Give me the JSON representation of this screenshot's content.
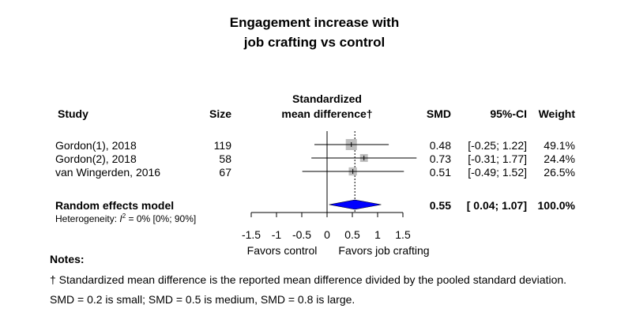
{
  "chart_data": {
    "type": "forest",
    "title_lines": [
      "Engagement increase with",
      "job crafting vs control"
    ],
    "headers": {
      "study": "Study",
      "size": "Size",
      "plot_title_lines": [
        "Standardized",
        "mean difference†"
      ],
      "smd": "SMD",
      "ci": "95%-CI",
      "weight": "Weight"
    },
    "studies": [
      {
        "name": "Gordon(1), 2018",
        "size": "119",
        "smd": 0.48,
        "lower": -0.25,
        "upper": 1.22,
        "smd_text": "0.48",
        "ci_text": "[-0.25; 1.22]",
        "weight": 49.1,
        "weight_text": "49.1%"
      },
      {
        "name": "Gordon(2), 2018",
        "size": "58",
        "smd": 0.73,
        "lower": -0.31,
        "upper": 1.77,
        "smd_text": "0.73",
        "ci_text": "[-0.31; 1.77]",
        "weight": 24.4,
        "weight_text": "24.4%"
      },
      {
        "name": "van Wingerden, 2016",
        "size": "67",
        "smd": 0.51,
        "lower": -0.49,
        "upper": 1.52,
        "smd_text": "0.51",
        "ci_text": "[-0.49; 1.52]",
        "weight": 26.5,
        "weight_text": "26.5%"
      }
    ],
    "pooled": {
      "label": "Random effects model",
      "smd": 0.55,
      "lower": 0.04,
      "upper": 1.07,
      "smd_text": "0.55",
      "ci_text": "[ 0.04; 1.07]",
      "weight_text": "100.0%"
    },
    "heterogeneity": {
      "prefix": "Heterogeneity: ",
      "symbol": "I",
      "superscript": "2",
      "rest": " = 0% [0%; 90%]"
    },
    "x_axis": {
      "ticks": [
        -1.5,
        -1,
        -0.5,
        0,
        0.5,
        1,
        1.5
      ],
      "tick_labels": [
        "-1.5",
        "-1",
        "-0.5",
        "0",
        "0.5",
        "1",
        "1.5"
      ],
      "range": [
        -1.5,
        1.5
      ],
      "left_label": "Favors control",
      "right_label": "Favors job crafting"
    },
    "colors": {
      "pooled_diamond": "#0000ff",
      "study_square": "#bebebe"
    }
  },
  "notes": {
    "heading": "Notes:",
    "lines": [
      "† Standardized mean difference is the reported mean difference divided by the pooled standard deviation.",
      "SMD = 0.2 is small; SMD = 0.5 is medium, SMD = 0.8 is large."
    ]
  }
}
